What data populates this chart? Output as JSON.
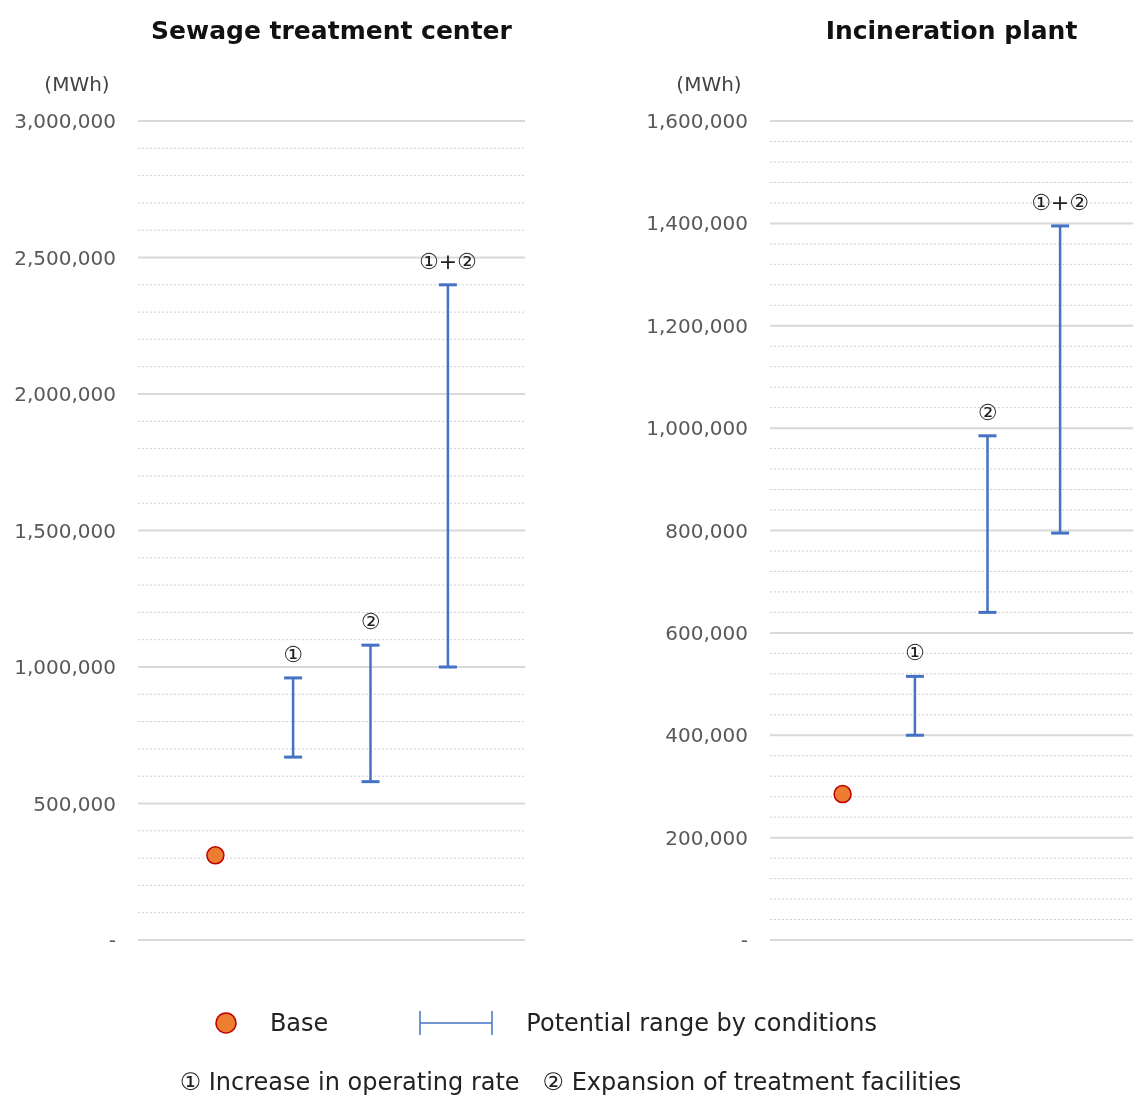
{
  "chart_data": [
    {
      "type": "scatter",
      "title": "Sewage treatment center",
      "ylabel": "(MWh)",
      "categories": [
        null,
        null,
        null,
        null
      ],
      "ylim": [
        0,
        3000000
      ],
      "yticks": [
        {
          "value": 0,
          "label": "-"
        },
        {
          "value": 100000,
          "label": null
        },
        {
          "value": 200000,
          "label": null
        },
        {
          "value": 300000,
          "label": null
        },
        {
          "value": 400000,
          "label": null
        },
        {
          "value": 500000,
          "label": "500,000"
        },
        {
          "value": 600000,
          "label": null
        },
        {
          "value": 700000,
          "label": null
        },
        {
          "value": 800000,
          "label": null
        },
        {
          "value": 900000,
          "label": null
        },
        {
          "value": 1000000,
          "label": "1,000,000"
        },
        {
          "value": 1100000,
          "label": null
        },
        {
          "value": 1200000,
          "label": null
        },
        {
          "value": 1300000,
          "label": null
        },
        {
          "value": 1400000,
          "label": null
        },
        {
          "value": 1500000,
          "label": "1,500,000"
        },
        {
          "value": 1600000,
          "label": null
        },
        {
          "value": 1700000,
          "label": null
        },
        {
          "value": 1800000,
          "label": null
        },
        {
          "value": 1900000,
          "label": null
        },
        {
          "value": 2000000,
          "label": "2,000,000"
        },
        {
          "value": 2100000,
          "label": null
        },
        {
          "value": 2200000,
          "label": null
        },
        {
          "value": 2300000,
          "label": null
        },
        {
          "value": 2400000,
          "label": null
        },
        {
          "value": 2500000,
          "label": "2,500,000"
        },
        {
          "value": 2600000,
          "label": null
        },
        {
          "value": 2700000,
          "label": null
        },
        {
          "value": 2800000,
          "label": null
        },
        {
          "value": 2900000,
          "label": null
        },
        {
          "value": 3000000,
          "label": "3,000,000"
        }
      ],
      "grid": "y",
      "marker": "circle",
      "legend": "bottom",
      "series": [
        {
          "name": "Base",
          "color": "#ed7d31",
          "values": [
            310000,
            null,
            null,
            null
          ]
        },
        {
          "name": "Potential range by conditions",
          "type": "bar",
          "color": "#4472c4",
          "base": [
            null,
            670000,
            580000,
            1000000
          ],
          "values": [
            null,
            290000,
            500000,
            1400000
          ],
          "value_labels": [
            null,
            "①",
            "②",
            "①+②"
          ]
        }
      ],
      "annotations": [
        "① Increase in operating rate   ② Expansion of treatment facilities"
      ]
    },
    {
      "type": "scatter",
      "title": "Incineration plant",
      "ylabel": "(MWh)",
      "categories": [
        null,
        null,
        null,
        null
      ],
      "ylim": [
        0,
        1600000
      ],
      "yticks": [
        {
          "value": 0,
          "label": "-"
        },
        {
          "value": 40000,
          "label": null
        },
        {
          "value": 80000,
          "label": null
        },
        {
          "value": 120000,
          "label": null
        },
        {
          "value": 160000,
          "label": null
        },
        {
          "value": 200000,
          "label": "200,000"
        },
        {
          "value": 240000,
          "label": null
        },
        {
          "value": 280000,
          "label": null
        },
        {
          "value": 320000,
          "label": null
        },
        {
          "value": 360000,
          "label": null
        },
        {
          "value": 400000,
          "label": "400,000"
        },
        {
          "value": 440000,
          "label": null
        },
        {
          "value": 480000,
          "label": null
        },
        {
          "value": 520000,
          "label": null
        },
        {
          "value": 560000,
          "label": null
        },
        {
          "value": 600000,
          "label": "600,000"
        },
        {
          "value": 640000,
          "label": null
        },
        {
          "value": 680000,
          "label": null
        },
        {
          "value": 720000,
          "label": null
        },
        {
          "value": 760000,
          "label": null
        },
        {
          "value": 800000,
          "label": "800,000"
        },
        {
          "value": 840000,
          "label": null
        },
        {
          "value": 880000,
          "label": null
        },
        {
          "value": 920000,
          "label": null
        },
        {
          "value": 960000,
          "label": null
        },
        {
          "value": 1000000,
          "label": "1,000,000"
        },
        {
          "value": 1040000,
          "label": null
        },
        {
          "value": 1080000,
          "label": null
        },
        {
          "value": 1120000,
          "label": null
        },
        {
          "value": 1160000,
          "label": null
        },
        {
          "value": 1200000,
          "label": "1,200,000"
        },
        {
          "value": 1240000,
          "label": null
        },
        {
          "value": 1280000,
          "label": null
        },
        {
          "value": 1320000,
          "label": null
        },
        {
          "value": 1360000,
          "label": null
        },
        {
          "value": 1400000,
          "label": "1,400,000"
        },
        {
          "value": 1440000,
          "label": null
        },
        {
          "value": 1480000,
          "label": null
        },
        {
          "value": 1520000,
          "label": null
        },
        {
          "value": 1560000,
          "label": null
        },
        {
          "value": 1600000,
          "label": "1,600,000"
        }
      ],
      "grid": "y",
      "marker": "circle",
      "series": [
        {
          "color": "#ed7d31",
          "values": [
            285000,
            null,
            null,
            null
          ]
        },
        {
          "type": "bar",
          "color": "#4472c4",
          "base": [
            null,
            400000,
            640000,
            795000
          ],
          "values": [
            null,
            115000,
            345000,
            600000
          ],
          "value_labels": [
            null,
            "①",
            "②",
            "①+②"
          ]
        }
      ]
    }
  ]
}
